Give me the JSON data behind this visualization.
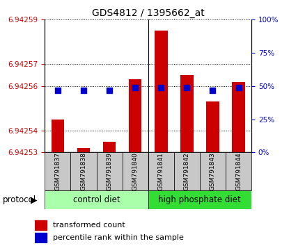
{
  "title": "GDS4812 / 1395662_at",
  "samples": [
    "GSM791837",
    "GSM791838",
    "GSM791839",
    "GSM791840",
    "GSM791841",
    "GSM791842",
    "GSM791843",
    "GSM791844"
  ],
  "transformed_counts": [
    6.942545,
    6.942532,
    6.942535,
    6.942563,
    6.942585,
    6.942565,
    6.942553,
    6.942562
  ],
  "percentile_ranks": [
    47,
    47,
    47,
    49,
    49,
    49,
    47,
    49
  ],
  "ylim_left": [
    6.94253,
    6.94259
  ],
  "ylim_right": [
    0,
    100
  ],
  "yticks_left": [
    6.94253,
    6.94254,
    6.94256,
    6.94257,
    6.94259
  ],
  "yticks_right": [
    0,
    25,
    50,
    75,
    100
  ],
  "groups": [
    {
      "label": "control diet",
      "samples_idx": [
        0,
        1,
        2,
        3
      ],
      "color": "#aaffaa"
    },
    {
      "label": "high phosphate diet",
      "samples_idx": [
        4,
        5,
        6,
        7
      ],
      "color": "#33dd33"
    }
  ],
  "bar_color": "#cc0000",
  "dot_color": "#0000cc",
  "bar_width": 0.5,
  "dot_size": 30,
  "background_label": "#c8c8c8",
  "title_fontsize": 10,
  "tick_fontsize": 7.5,
  "label_fontsize": 8.5,
  "legend_fontsize": 8,
  "left_tick_color": "#cc0000",
  "right_tick_color": "#0000cc",
  "grid_linestyle": ":"
}
